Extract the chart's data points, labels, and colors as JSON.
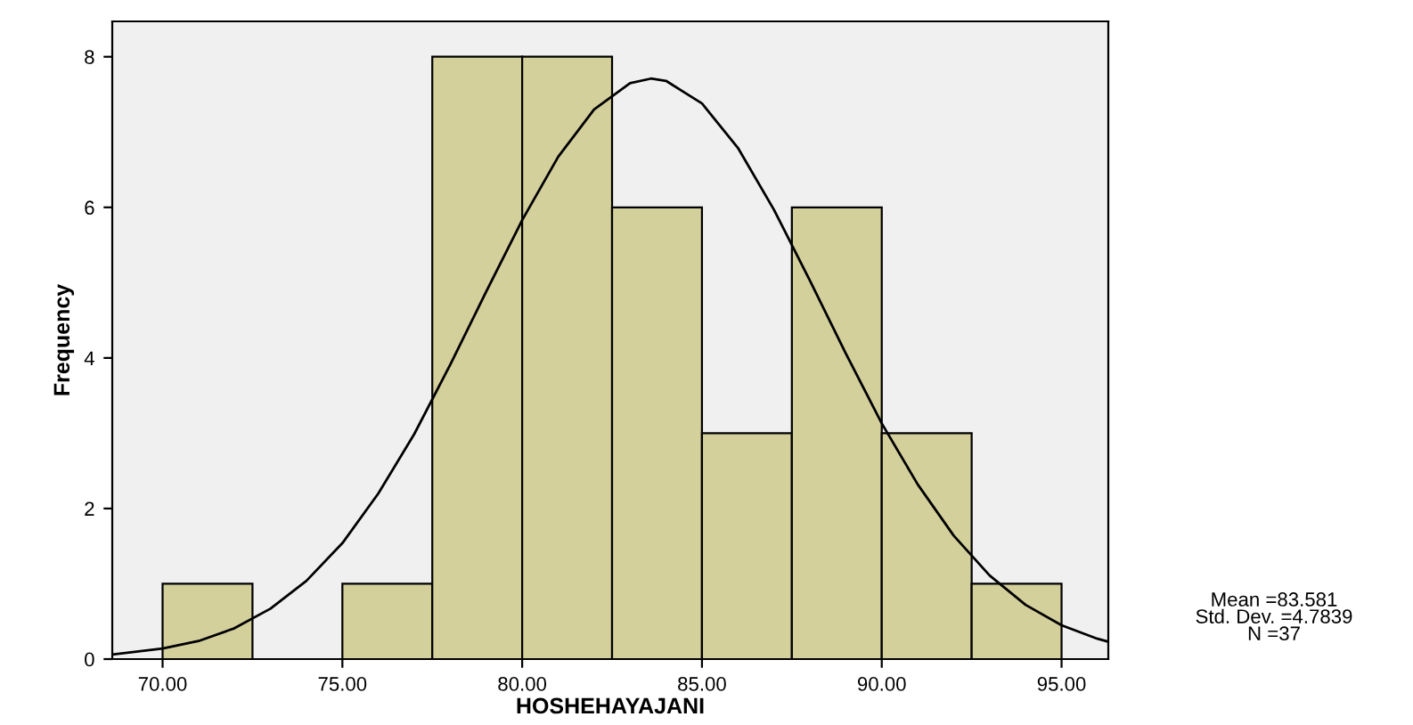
{
  "chart_data": {
    "type": "histogram",
    "xlabel": "HOSHEHAYAJANI",
    "ylabel": "Frequency",
    "bins": [
      70,
      72.5,
      75,
      77.5,
      80,
      82.5,
      85,
      87.5,
      90,
      92.5,
      95
    ],
    "values": [
      1,
      0,
      1,
      8,
      8,
      6,
      3,
      6,
      3,
      1
    ],
    "color": "#d4d09c",
    "series": [
      {
        "type": "line",
        "color": "#000000",
        "x": [
          68.6,
          70,
          71,
          72,
          73,
          74,
          75,
          76,
          77,
          78,
          79,
          80,
          81,
          82,
          83,
          83.581,
          84,
          85,
          86,
          87,
          88,
          89,
          90,
          91,
          92,
          93,
          94,
          95,
          96,
          96.3
        ],
        "values": [
          0.06,
          0.14,
          0.24,
          0.41,
          0.67,
          1.04,
          1.54,
          2.2,
          2.99,
          3.91,
          4.88,
          5.83,
          6.67,
          7.3,
          7.65,
          7.71,
          7.68,
          7.38,
          6.79,
          5.97,
          5.03,
          4.06,
          3.13,
          2.32,
          1.64,
          1.11,
          0.72,
          0.45,
          0.27,
          0.23
        ]
      }
    ],
    "xlim": [
      68.6,
      96.3
    ],
    "ylim": [
      0,
      8.47
    ],
    "xticks": [
      {
        "value": 70,
        "label": "70.00"
      },
      {
        "value": 75,
        "label": "75.00"
      },
      {
        "value": 80,
        "label": "80.00"
      },
      {
        "value": 85,
        "label": "85.00"
      },
      {
        "value": 90,
        "label": "90.00"
      },
      {
        "value": 95,
        "label": "95.00"
      }
    ],
    "yticks": [
      0,
      2,
      4,
      6,
      8
    ],
    "grid": false,
    "legend": false,
    "annotations": [
      "Mean =83.581\nStd. Dev. =4.7839\nN =37"
    ]
  }
}
